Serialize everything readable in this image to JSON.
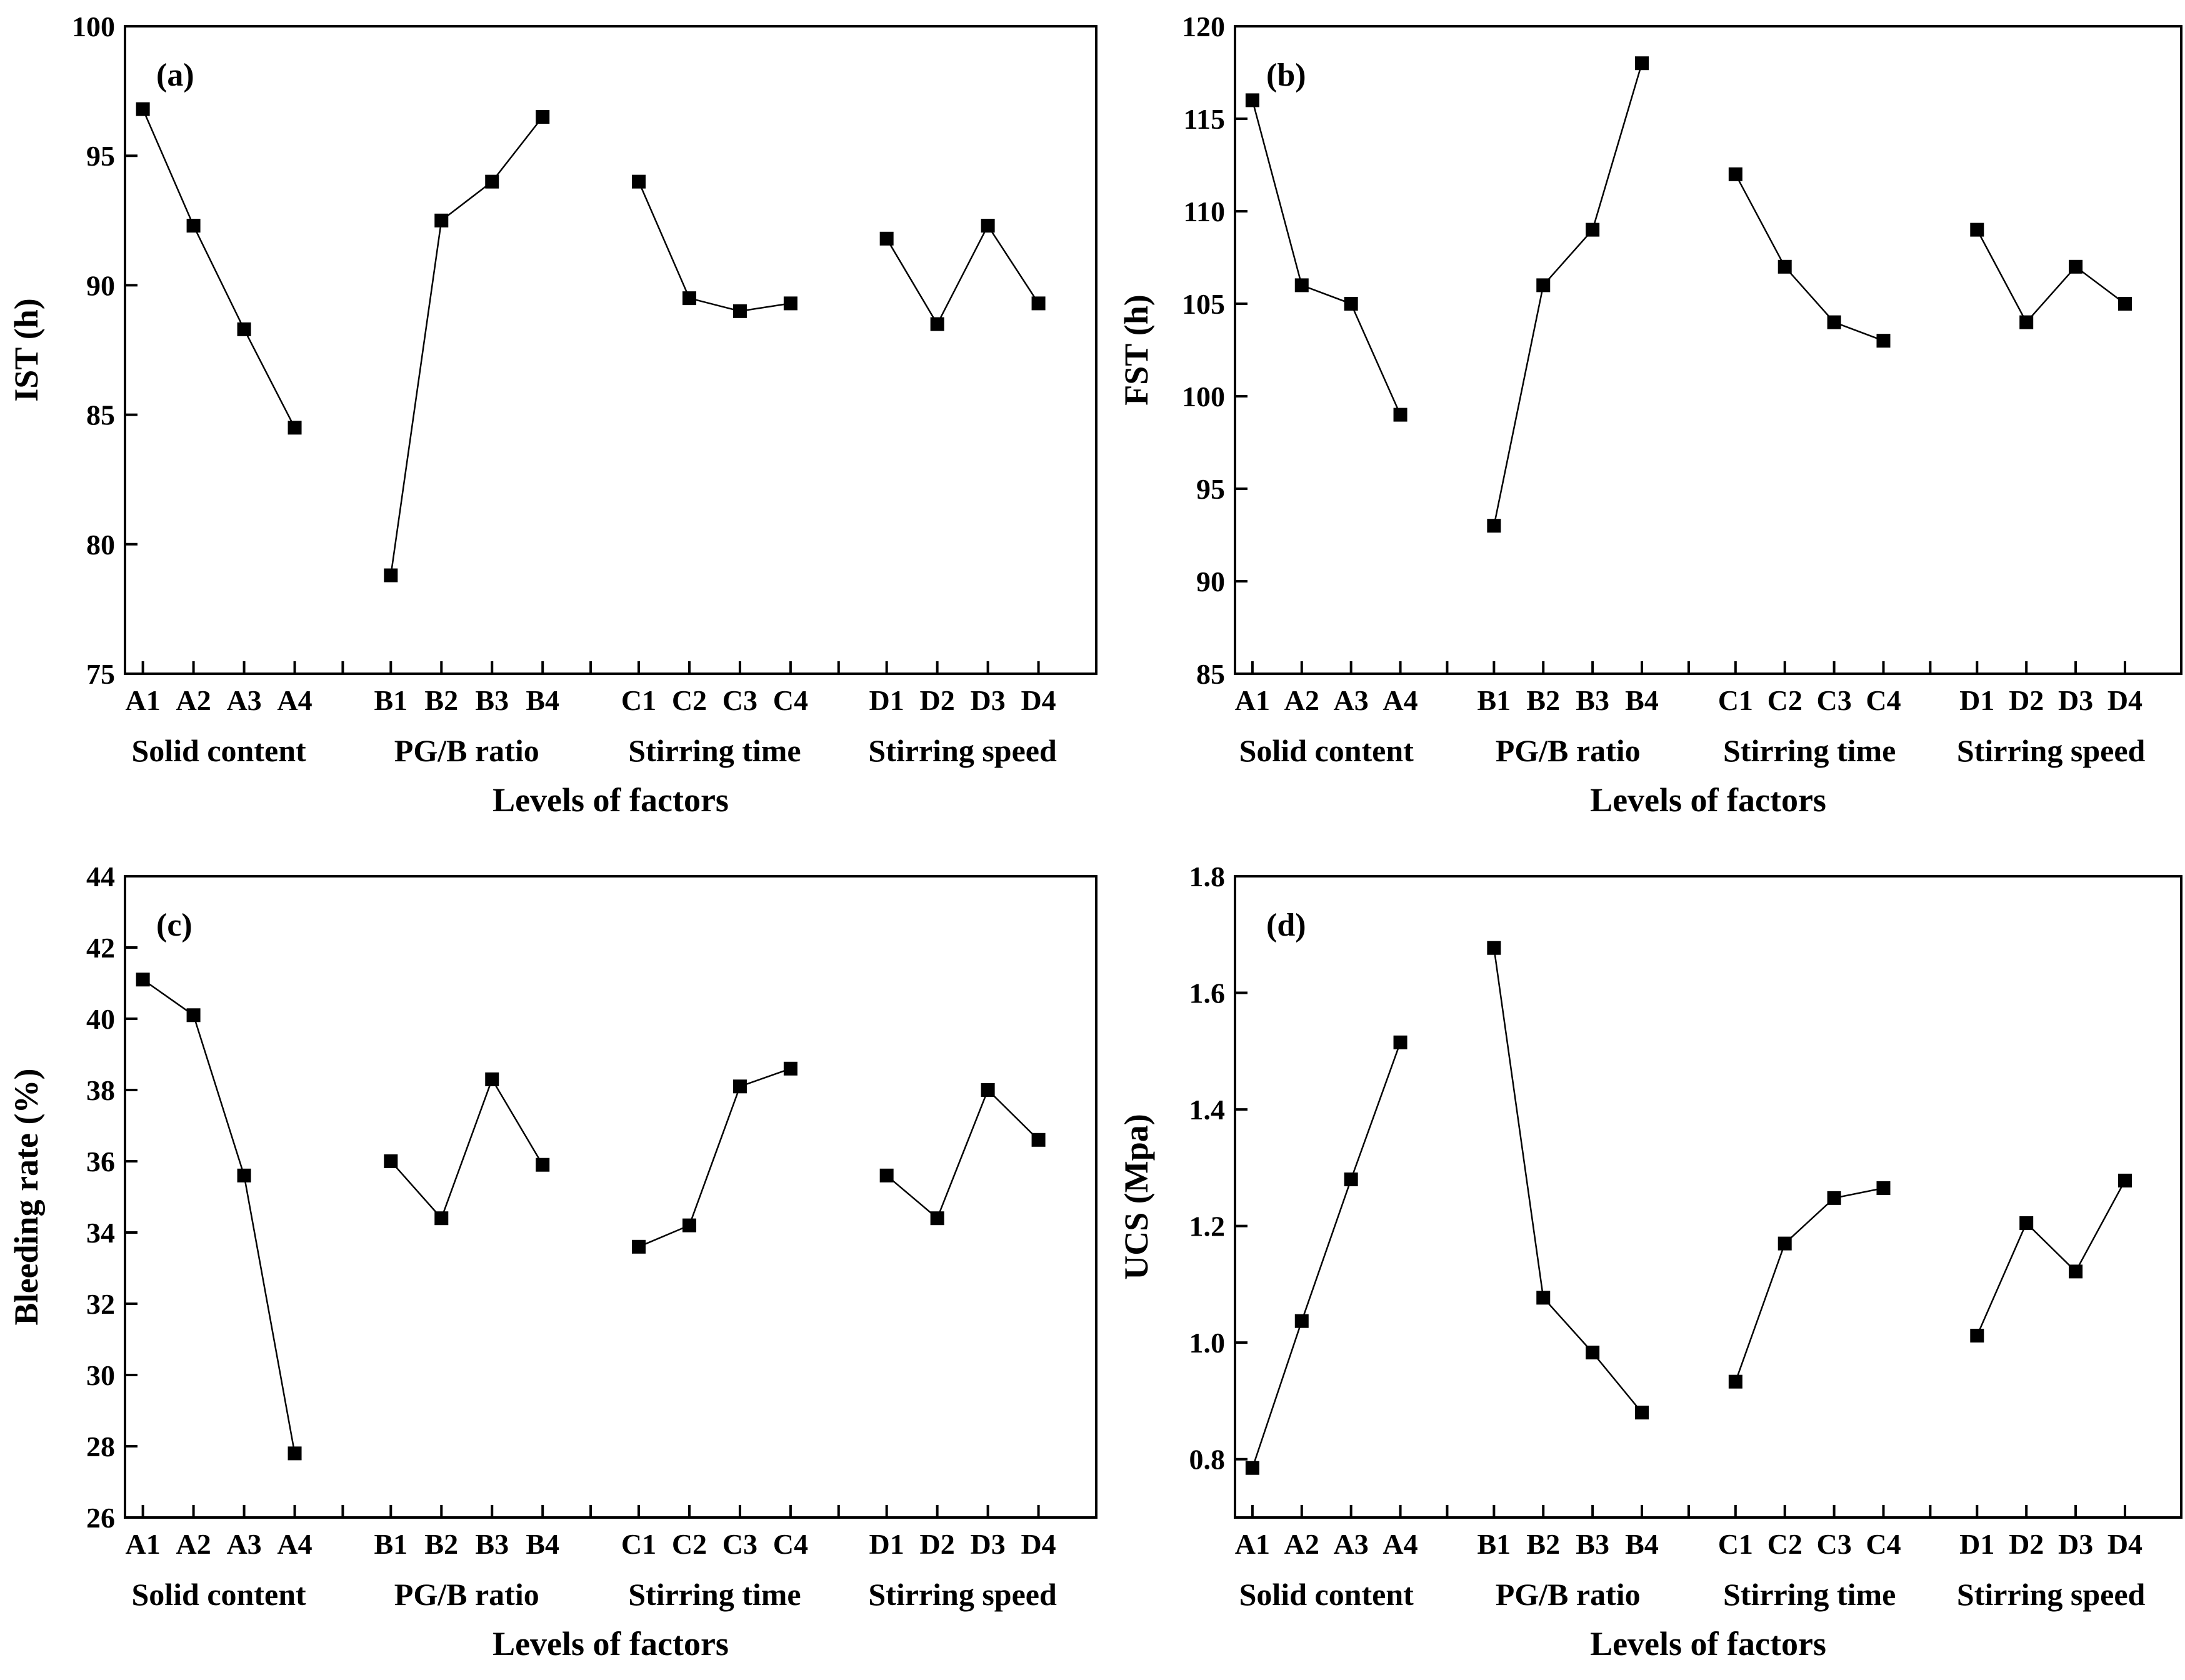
{
  "chart_data": [
    {
      "type": "line",
      "panel": "(a)",
      "ylabel": "IST (h)",
      "xlabel": "Levels of factors",
      "ylim": [
        75,
        100
      ],
      "yticks": [
        75,
        80,
        85,
        90,
        95,
        100
      ],
      "groups": [
        {
          "name": "Solid content",
          "levels": [
            "A1",
            "A2",
            "A3",
            "A4"
          ],
          "values": [
            96.8,
            92.3,
            88.3,
            84.5
          ]
        },
        {
          "name": "PG/B ratio",
          "levels": [
            "B1",
            "B2",
            "B3",
            "B4"
          ],
          "values": [
            78.8,
            92.5,
            94.0,
            96.5
          ]
        },
        {
          "name": "Stirring time",
          "levels": [
            "C1",
            "C2",
            "C3",
            "C4"
          ],
          "values": [
            94.0,
            89.5,
            89.0,
            89.3
          ]
        },
        {
          "name": "Stirring speed",
          "levels": [
            "D1",
            "D2",
            "D3",
            "D4"
          ],
          "values": [
            91.8,
            88.5,
            92.3,
            89.3
          ]
        }
      ]
    },
    {
      "type": "line",
      "panel": "(b)",
      "ylabel": "FST (h)",
      "xlabel": "Levels of factors",
      "ylim": [
        85,
        120
      ],
      "yticks": [
        85,
        90,
        95,
        100,
        105,
        110,
        115,
        120
      ],
      "groups": [
        {
          "name": "Solid content",
          "levels": [
            "A1",
            "A2",
            "A3",
            "A4"
          ],
          "values": [
            116,
            106,
            105,
            99
          ]
        },
        {
          "name": "PG/B ratio",
          "levels": [
            "B1",
            "B2",
            "B3",
            "B4"
          ],
          "values": [
            93,
            106,
            109,
            118
          ]
        },
        {
          "name": "Stirring time",
          "levels": [
            "C1",
            "C2",
            "C3",
            "C4"
          ],
          "values": [
            112,
            107,
            104,
            103
          ]
        },
        {
          "name": "Stirring speed",
          "levels": [
            "D1",
            "D2",
            "D3",
            "D4"
          ],
          "values": [
            109,
            104,
            107,
            105
          ]
        }
      ]
    },
    {
      "type": "line",
      "panel": "(c)",
      "ylabel": "Bleeding rate (%)",
      "xlabel": "Levels of factors",
      "ylim": [
        26,
        44
      ],
      "yticks": [
        26,
        28,
        30,
        32,
        34,
        36,
        38,
        40,
        42,
        44
      ],
      "groups": [
        {
          "name": "Solid content",
          "levels": [
            "A1",
            "A2",
            "A3",
            "A4"
          ],
          "values": [
            41.1,
            40.1,
            35.6,
            27.8
          ]
        },
        {
          "name": "PG/B ratio",
          "levels": [
            "B1",
            "B2",
            "B3",
            "B4"
          ],
          "values": [
            36.0,
            34.4,
            38.3,
            35.9
          ]
        },
        {
          "name": "Stirring time",
          "levels": [
            "C1",
            "C2",
            "C3",
            "C4"
          ],
          "values": [
            33.6,
            34.2,
            38.1,
            38.6
          ]
        },
        {
          "name": "Stirring speed",
          "levels": [
            "D1",
            "D2",
            "D3",
            "D4"
          ],
          "values": [
            35.6,
            34.4,
            38.0,
            36.6
          ]
        }
      ]
    },
    {
      "type": "line",
      "panel": "(d)",
      "ylabel": "UCS (Mpa)",
      "xlabel": "Levels of factors",
      "ylim": [
        0.7,
        1.8
      ],
      "yticks": [
        0.8,
        1.0,
        1.2,
        1.4,
        1.6,
        1.8
      ],
      "ytick_format": 1,
      "groups": [
        {
          "name": "Solid content",
          "levels": [
            "A1",
            "A2",
            "A3",
            "A4"
          ],
          "values": [
            0.785,
            1.037,
            1.28,
            1.515
          ]
        },
        {
          "name": "PG/B ratio",
          "levels": [
            "B1",
            "B2",
            "B3",
            "B4"
          ],
          "values": [
            1.677,
            1.077,
            0.983,
            0.88
          ]
        },
        {
          "name": "Stirring time",
          "levels": [
            "C1",
            "C2",
            "C3",
            "C4"
          ],
          "values": [
            0.933,
            1.17,
            1.248,
            1.265
          ]
        },
        {
          "name": "Stirring speed",
          "levels": [
            "D1",
            "D2",
            "D3",
            "D4"
          ],
          "values": [
            1.012,
            1.205,
            1.122,
            1.278
          ]
        }
      ]
    }
  ]
}
